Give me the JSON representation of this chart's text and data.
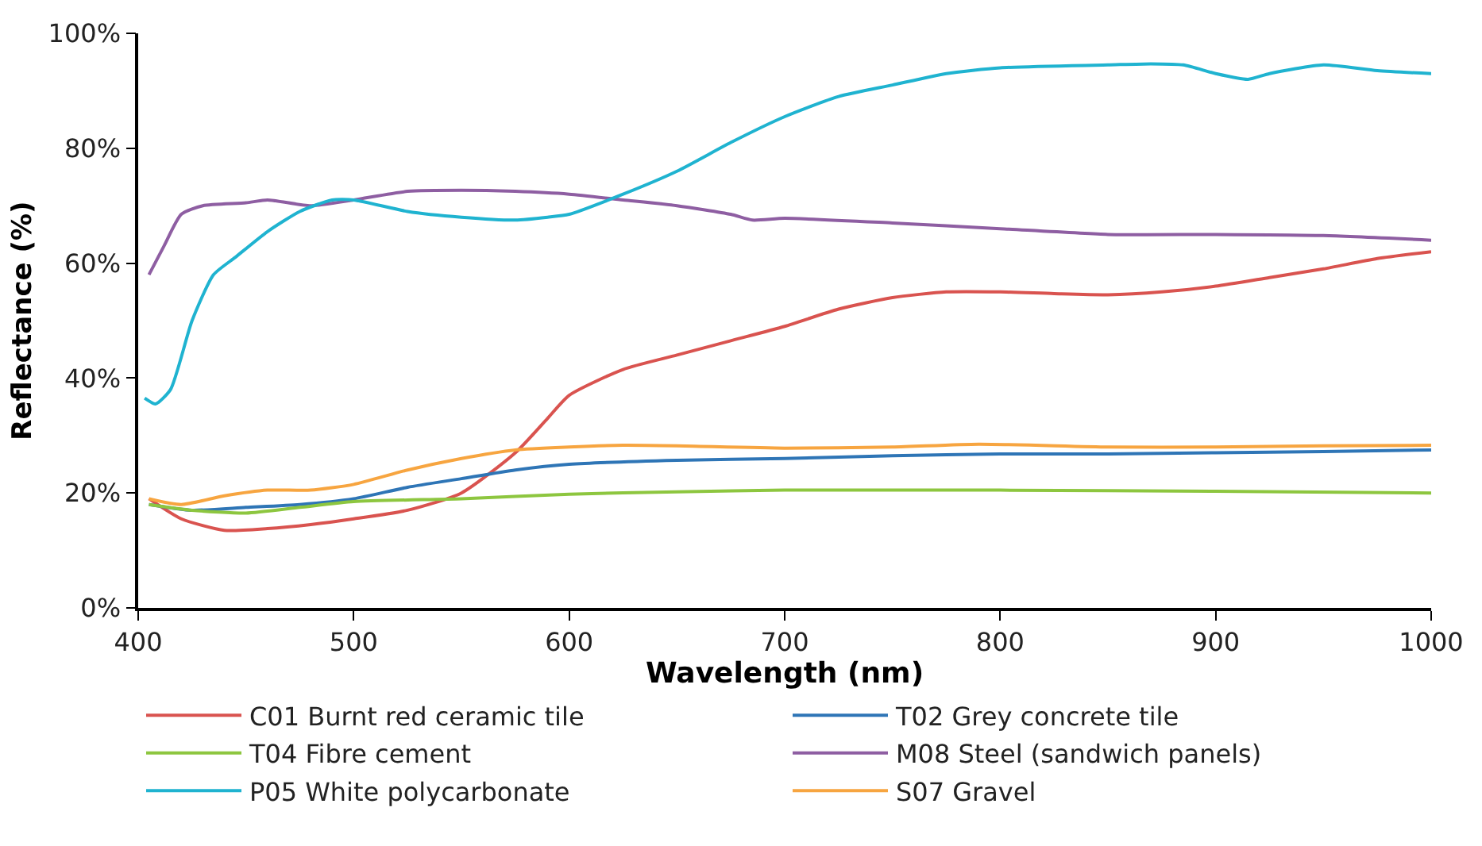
{
  "chart_data": {
    "type": "line",
    "xlabel": "Wavelength (nm)",
    "ylabel": "Reflectance (%)",
    "xlim": [
      400,
      1000
    ],
    "xticks": [
      400,
      500,
      600,
      700,
      800,
      900,
      1000
    ],
    "ylim": [
      0,
      100
    ],
    "yticks": [
      {
        "value": 0,
        "label": "0%"
      },
      {
        "value": 20,
        "label": "20%"
      },
      {
        "value": 40,
        "label": "40%"
      },
      {
        "value": 60,
        "label": "60%"
      },
      {
        "value": 80,
        "label": "80%"
      },
      {
        "value": 100,
        "label": "100%"
      }
    ],
    "legend": "bottom",
    "marker": "none",
    "line_style": "solid",
    "series": [
      {
        "name": "C01 Burnt red ceramic tile",
        "color": "#d9534f",
        "x": [
          405,
          420,
          440,
          460,
          480,
          500,
          525,
          550,
          575,
          590,
          600,
          625,
          650,
          675,
          700,
          725,
          750,
          775,
          800,
          825,
          850,
          875,
          900,
          925,
          950,
          975,
          1000
        ],
        "values": [
          19,
          15.5,
          13.5,
          13.8,
          14.5,
          15.5,
          17,
          20,
          27,
          33,
          37,
          41.5,
          44,
          46.5,
          49,
          52,
          54,
          55,
          55,
          54.7,
          54.5,
          55,
          56,
          57.5,
          59,
          60.8,
          62
        ]
      },
      {
        "name": "T02 Grey concrete tile",
        "color": "#2e75b6",
        "x": [
          405,
          425,
          450,
          475,
          500,
          525,
          550,
          575,
          600,
          650,
          700,
          750,
          800,
          850,
          900,
          950,
          1000
        ],
        "values": [
          18,
          17,
          17.5,
          18,
          19,
          21,
          22.5,
          24,
          25,
          25.7,
          26,
          26.5,
          26.8,
          26.8,
          27,
          27.2,
          27.5
        ]
      },
      {
        "name": "T04 Fibre cement",
        "color": "#8dc63f",
        "x": [
          405,
          425,
          450,
          475,
          500,
          550,
          600,
          650,
          700,
          800,
          900,
          1000
        ],
        "values": [
          18,
          17,
          16.5,
          17.5,
          18.5,
          19,
          19.8,
          20.2,
          20.5,
          20.5,
          20.3,
          20
        ]
      },
      {
        "name": "M08 Steel (sandwich panels)",
        "color": "#8e5ea2",
        "x": [
          405,
          412,
          420,
          430,
          450,
          460,
          480,
          500,
          525,
          550,
          575,
          600,
          625,
          650,
          675,
          685,
          700,
          750,
          800,
          850,
          900,
          950,
          1000
        ],
        "values": [
          58,
          63,
          68.5,
          70,
          70.5,
          71,
          70,
          71,
          72.5,
          72.7,
          72.5,
          72,
          71,
          70,
          68.5,
          67.5,
          67.8,
          67,
          66,
          65,
          65,
          64.8,
          64
        ]
      },
      {
        "name": "P05 White polycarbonate",
        "color": "#1fb3d0",
        "x": [
          403,
          408,
          415,
          425,
          435,
          445,
          460,
          475,
          490,
          500,
          525,
          550,
          575,
          590,
          600,
          625,
          650,
          675,
          700,
          725,
          750,
          775,
          800,
          850,
          870,
          885,
          900,
          915,
          925,
          950,
          975,
          1000
        ],
        "values": [
          36.5,
          35.5,
          38,
          50,
          58,
          61,
          65.5,
          69,
          71,
          71,
          69,
          68,
          67.5,
          68,
          68.5,
          72,
          76,
          81,
          85.5,
          89,
          91,
          93,
          94,
          94.5,
          94.7,
          94.5,
          93,
          92,
          93,
          94.5,
          93.5,
          93
        ]
      },
      {
        "name": "S07 Gravel",
        "color": "#f7a540",
        "x": [
          405,
          420,
          440,
          460,
          480,
          500,
          525,
          550,
          575,
          600,
          625,
          650,
          700,
          750,
          790,
          850,
          900,
          950,
          1000
        ],
        "values": [
          19,
          18,
          19.5,
          20.5,
          20.5,
          21.5,
          24,
          26,
          27.5,
          28,
          28.3,
          28.2,
          27.8,
          28,
          28.5,
          28,
          28,
          28.2,
          28.3
        ]
      }
    ]
  }
}
